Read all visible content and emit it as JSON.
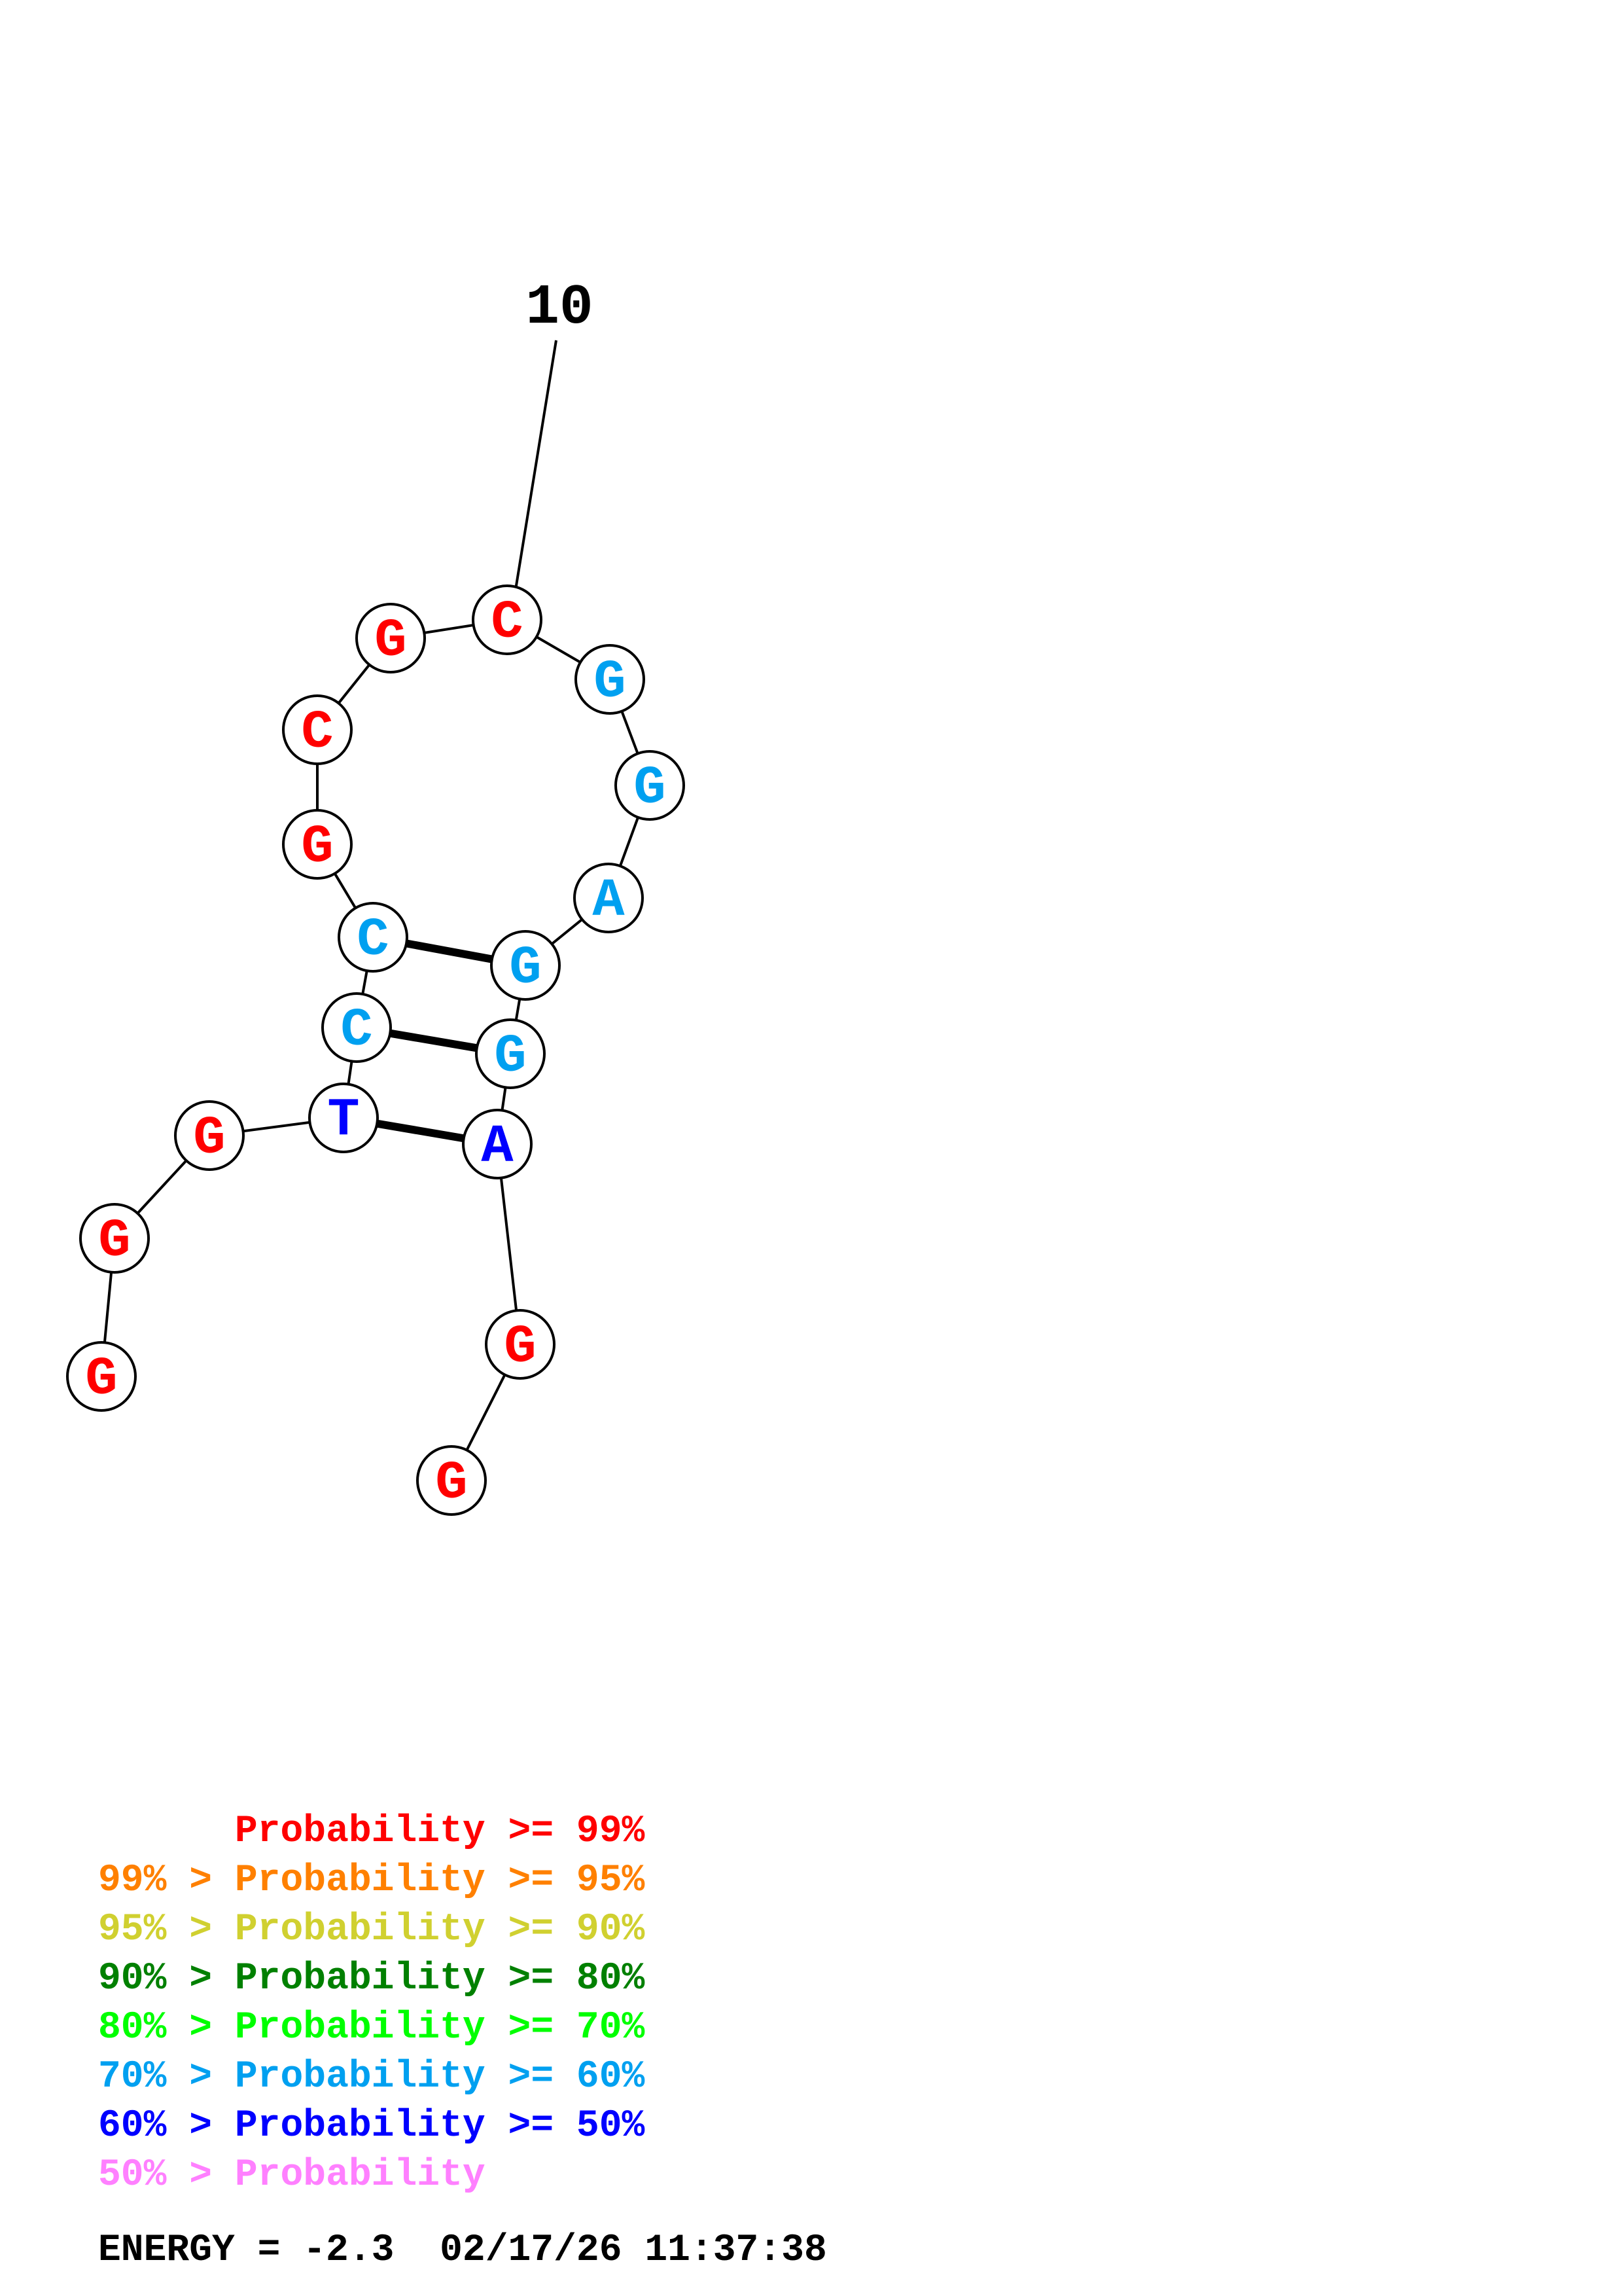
{
  "structure": {
    "nucleotides": [
      {
        "base": "G",
        "color": "#ff0000"
      },
      {
        "base": "G",
        "color": "#ff0000"
      },
      {
        "base": "G",
        "color": "#ff0000"
      },
      {
        "base": "T",
        "color": "#0000ff"
      },
      {
        "base": "C",
        "color": "#00a0f0"
      },
      {
        "base": "C",
        "color": "#00a0f0"
      },
      {
        "base": "G",
        "color": "#ff0000"
      },
      {
        "base": "C",
        "color": "#ff0000"
      },
      {
        "base": "G",
        "color": "#ff0000"
      },
      {
        "base": "C",
        "color": "#ff0000"
      },
      {
        "base": "G",
        "color": "#00a0f0"
      },
      {
        "base": "G",
        "color": "#00a0f0"
      },
      {
        "base": "A",
        "color": "#00a0f0"
      },
      {
        "base": "G",
        "color": "#00a0f0"
      },
      {
        "base": "G",
        "color": "#00a0f0"
      },
      {
        "base": "A",
        "color": "#0000ff"
      },
      {
        "base": "G",
        "color": "#ff0000"
      },
      {
        "base": "G",
        "color": "#ff0000"
      }
    ],
    "base_pairs": [
      [
        4,
        16
      ],
      [
        5,
        15
      ],
      [
        6,
        14
      ]
    ],
    "position_marks": [
      {
        "position": 10,
        "label": "10"
      }
    ]
  },
  "legend": {
    "entries": [
      {
        "prefix": "    ",
        "range": "Probability >= 99%",
        "color": "#ff0000"
      },
      {
        "prefix": "99% > ",
        "range": "Probability >= 95%",
        "color": "#ff8000"
      },
      {
        "prefix": "95% > ",
        "range": "Probability >= 90%",
        "color": "#d0d030"
      },
      {
        "prefix": "90% > ",
        "range": "Probability >= 80%",
        "color": "#008000"
      },
      {
        "prefix": "80% > ",
        "range": "Probability >= 70%",
        "color": "#00ff00"
      },
      {
        "prefix": "70% > ",
        "range": "Probability >= 60%",
        "color": "#00a0f0"
      },
      {
        "prefix": "60% > ",
        "range": "Probability >= 50%",
        "color": "#0000ff"
      },
      {
        "prefix": "50% > ",
        "range": "Probability",
        "color": "#ff80ff"
      }
    ],
    "energy": "ENERGY = -2.3  02/17/26 11:37:38"
  }
}
